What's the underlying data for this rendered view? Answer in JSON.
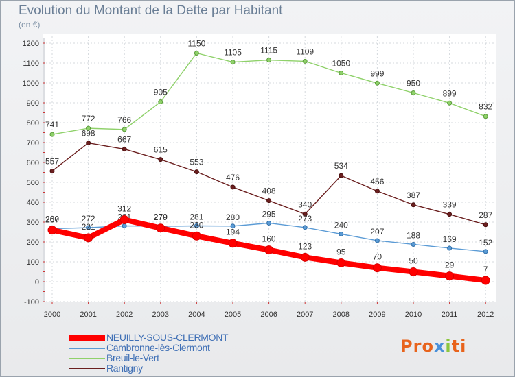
{
  "title": "Evolution du Montant de la Dette par Habitant",
  "subtitle": "(en €)",
  "brand": {
    "letters": [
      "P",
      "r",
      "o",
      "x",
      "i",
      "t",
      "i"
    ],
    "colors": [
      "#e8631c",
      "#e8631c",
      "#e8631c",
      "#4a90d9",
      "#8cc63e",
      "#e8631c",
      "#e8631c"
    ]
  },
  "chart_data": {
    "type": "line",
    "title": "Evolution du Montant de la Dette par Habitant",
    "ylabel": "(en €)",
    "xlabel": "",
    "x": [
      "2000",
      "2001",
      "2002",
      "2003",
      "2004",
      "2005",
      "2006",
      "2007",
      "2008",
      "2009",
      "2010",
      "2011",
      "2012"
    ],
    "ylim": [
      -100,
      1200
    ],
    "yticks": [
      "-100",
      "0",
      "100",
      "200",
      "300",
      "400",
      "500",
      "600",
      "700",
      "800",
      "900",
      "1000",
      "1100",
      "1200"
    ],
    "grid": true,
    "legend_position": "bottom-left",
    "series": [
      {
        "name": "Rantigny",
        "color": "#6b1f1f",
        "values": [
          557,
          698,
          667,
          615,
          553,
          476,
          408,
          340,
          534,
          456,
          387,
          339,
          287
        ]
      },
      {
        "name": "Breuil-le-Vert",
        "color": "#8fd16a",
        "values": [
          741,
          772,
          766,
          905,
          1150,
          1105,
          1115,
          1109,
          1050,
          999,
          950,
          899,
          832
        ]
      },
      {
        "name": "Cambronne-lès-Clermont",
        "color": "#5b9bd5",
        "values": [
          267,
          272,
          281,
          279,
          281,
          280,
          295,
          273,
          240,
          207,
          188,
          169,
          152
        ]
      },
      {
        "name": "NEUILLY-SOUS-CLERMONT",
        "color": "#ff0000",
        "values": [
          260,
          221,
          312,
          270,
          230,
          194,
          160,
          123,
          95,
          70,
          50,
          29,
          7
        ]
      }
    ]
  },
  "legend": [
    {
      "name": "NEUILLY-SOUS-CLERMONT",
      "color": "#ff0000",
      "label_color": "#3f6fb5"
    },
    {
      "name": "Cambronne-lès-Clermont",
      "color": "#5b9bd5",
      "label_color": "#3f6fb5"
    },
    {
      "name": "Breuil-le-Vert",
      "color": "#8fd16a",
      "label_color": "#3f6fb5"
    },
    {
      "name": "Rantigny",
      "color": "#6b1f1f",
      "label_color": "#3f6fb5"
    }
  ]
}
